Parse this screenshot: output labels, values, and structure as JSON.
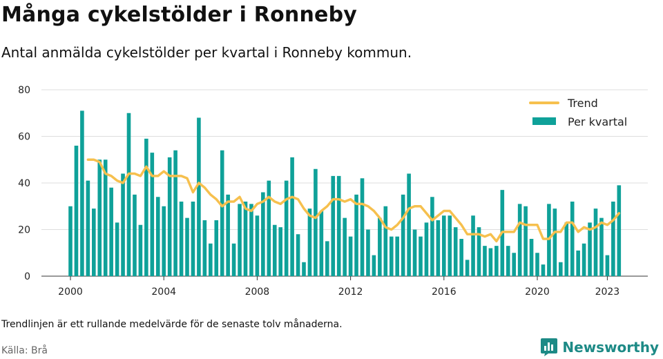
{
  "header": {
    "title": "Många cykelstölder i Ronneby",
    "subtitle": "Antal anmälda cykelstölder per kvartal i Ronneby kommun."
  },
  "footer": {
    "note": "Trendlinjen är ett rullande medelvärde för de senaste tolv månaderna.",
    "source": "Källa: Brå",
    "brand": "Newsworthy"
  },
  "colors": {
    "bar": "#0fa199",
    "trend": "#f6c04e",
    "grid": "#dddddd",
    "brand": "#1d8a86"
  },
  "icons": {
    "brand_logo": "bar-chart-speech-bubble-icon"
  },
  "chart_data": {
    "type": "bar",
    "title": "Många cykelstölder i Ronneby",
    "xlabel": "",
    "ylabel": "",
    "ylim": [
      0,
      80
    ],
    "yticks": [
      0,
      20,
      40,
      60,
      80
    ],
    "xticks": [
      "2000",
      "2004",
      "2008",
      "2012",
      "2016",
      "2020",
      "2023"
    ],
    "grid": true,
    "legend_position": "top-right",
    "x_start": "2000 Q1",
    "x_end": "2023 Q2",
    "series": [
      {
        "name": "Per kvartal",
        "kind": "bar",
        "values": [
          30,
          56,
          71,
          41,
          29,
          50,
          50,
          38,
          23,
          44,
          70,
          35,
          22,
          59,
          53,
          34,
          30,
          51,
          54,
          32,
          25,
          32,
          68,
          24,
          14,
          24,
          54,
          35,
          14,
          31,
          32,
          31,
          26,
          36,
          41,
          22,
          21,
          41,
          51,
          18,
          6,
          29,
          46,
          28,
          15,
          43,
          43,
          25,
          17,
          35,
          42,
          20,
          9,
          25,
          30,
          17,
          17,
          35,
          44,
          20,
          17,
          23,
          34,
          24,
          26,
          26,
          21,
          16,
          7,
          26,
          21,
          13,
          12,
          13,
          37,
          13,
          10,
          31,
          30,
          16,
          10,
          5,
          31,
          29,
          6,
          23,
          32,
          11,
          14,
          23,
          29,
          25,
          9,
          32,
          39
        ]
      },
      {
        "name": "Trend",
        "kind": "line",
        "start_index": 3,
        "values": [
          50,
          50,
          49,
          44,
          43,
          41,
          40,
          44,
          44,
          43,
          47,
          43,
          43,
          45,
          43,
          43,
          43,
          42,
          36,
          40,
          38,
          35,
          33,
          30,
          32,
          32,
          34,
          29,
          28,
          31,
          32,
          34,
          32,
          31,
          33,
          34,
          33,
          29,
          26,
          25,
          28,
          30,
          33,
          33,
          32,
          33,
          31,
          31,
          30,
          28,
          25,
          21,
          20,
          22,
          25,
          29,
          30,
          30,
          27,
          24,
          26,
          28,
          28,
          25,
          22,
          18,
          18,
          18,
          17,
          18,
          15,
          19,
          19,
          19,
          23,
          22,
          22,
          22,
          16,
          16,
          19,
          19,
          23,
          23,
          19,
          21,
          20,
          21,
          23,
          22,
          24,
          27
        ]
      }
    ]
  }
}
